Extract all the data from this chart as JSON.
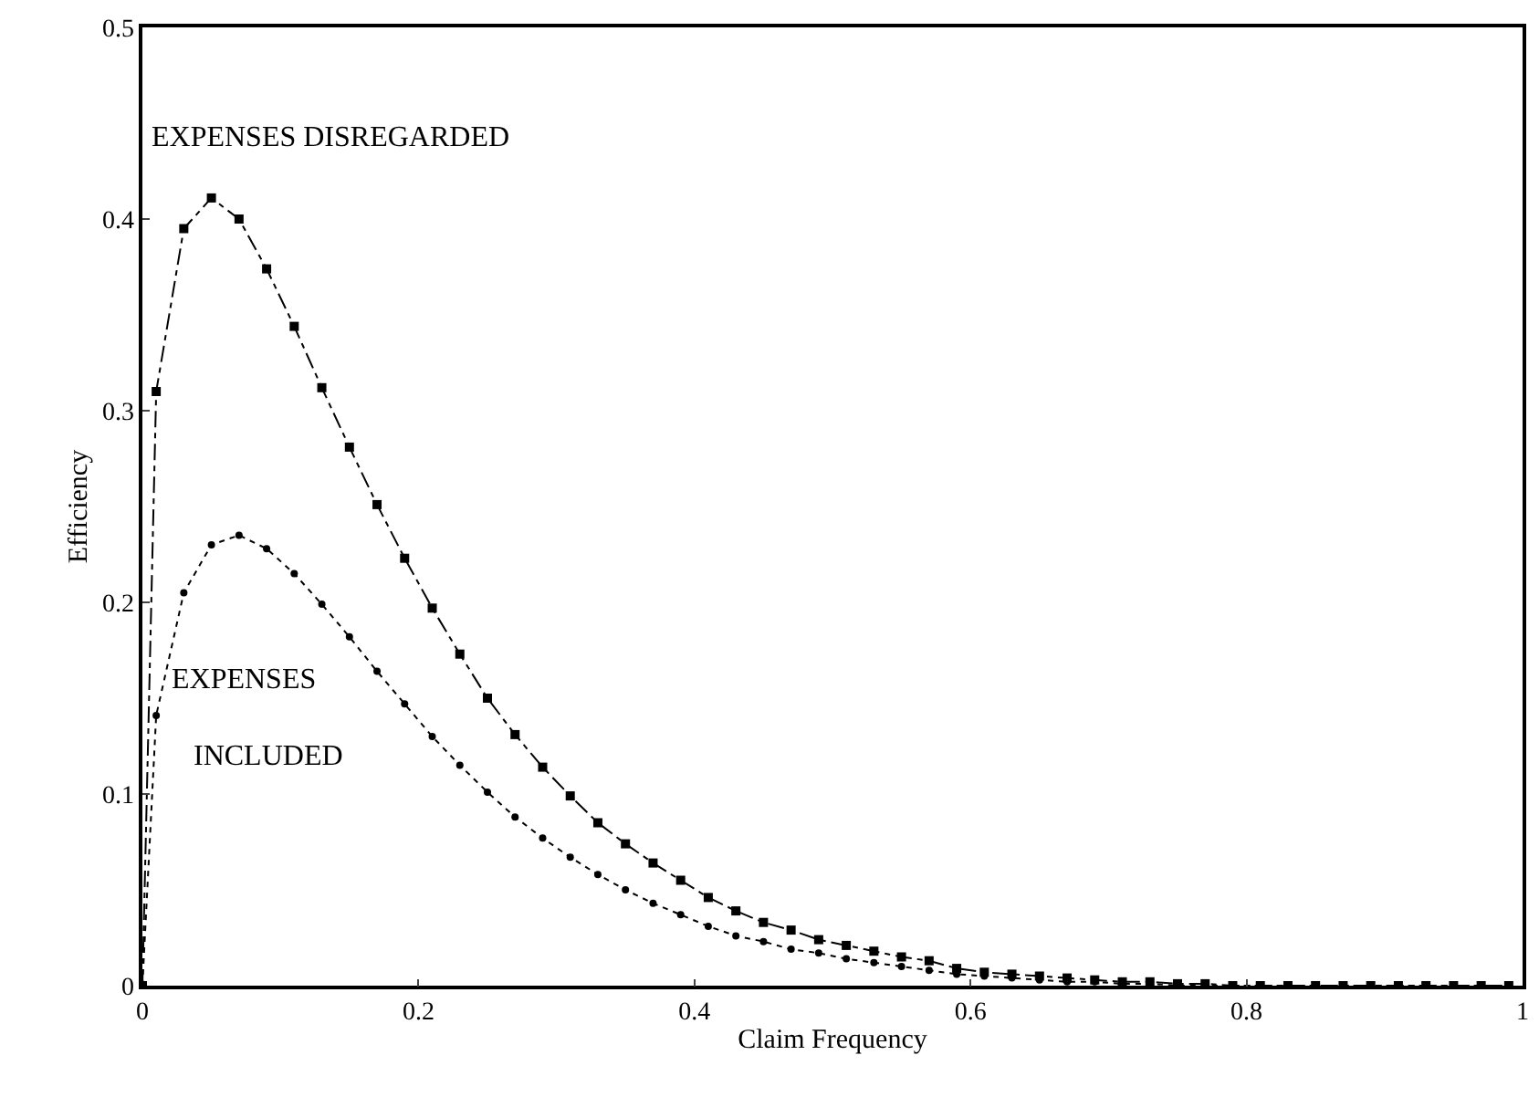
{
  "chart_data": {
    "type": "line",
    "xlabel": "Claim Frequency",
    "ylabel": "Efficiency",
    "x": [
      0,
      0.01,
      0.03,
      0.05,
      0.07,
      0.09,
      0.11,
      0.13,
      0.15,
      0.17,
      0.19,
      0.21,
      0.23,
      0.25,
      0.27,
      0.29,
      0.31,
      0.33,
      0.35,
      0.37,
      0.39,
      0.41,
      0.43,
      0.45,
      0.47,
      0.49,
      0.51,
      0.53,
      0.55,
      0.57,
      0.59,
      0.61,
      0.63,
      0.65,
      0.67,
      0.69,
      0.71,
      0.73,
      0.75,
      0.77,
      0.79,
      0.81,
      0.83,
      0.85,
      0.87,
      0.89,
      0.91,
      0.93,
      0.95,
      0.97,
      0.99
    ],
    "series": [
      {
        "color": "#000000",
        "marker": "square",
        "line_style": "dashed",
        "values": [
          0,
          0.31,
          0.395,
          0.411,
          0.4,
          0.374,
          0.344,
          0.312,
          0.281,
          0.251,
          0.223,
          0.197,
          0.173,
          0.15,
          0.131,
          0.114,
          0.099,
          0.085,
          0.074,
          0.064,
          0.055,
          0.046,
          0.039,
          0.033,
          0.029,
          0.024,
          0.021,
          0.018,
          0.015,
          0.013,
          0.009,
          0.007,
          0.006,
          0.005,
          0.004,
          0.003,
          0.002,
          0.002,
          0.001,
          0.001,
          0,
          0,
          0,
          0,
          0,
          0,
          0,
          0,
          0,
          0,
          0
        ]
      },
      {
        "color": "#000000",
        "marker": "circle",
        "line_style": "dotted",
        "values": [
          0,
          0.141,
          0.205,
          0.23,
          0.235,
          0.228,
          0.215,
          0.199,
          0.182,
          0.164,
          0.147,
          0.13,
          0.115,
          0.101,
          0.088,
          0.077,
          0.067,
          0.058,
          0.05,
          0.043,
          0.037,
          0.031,
          0.026,
          0.023,
          0.019,
          0.017,
          0.014,
          0.012,
          0.01,
          0.008,
          0.006,
          0.005,
          0.004,
          0.003,
          0.002,
          0.002,
          0.001,
          0.001,
          0,
          0,
          0,
          0,
          0,
          0,
          0,
          0,
          0,
          0,
          0,
          0,
          0
        ]
      }
    ],
    "xlim": [
      0,
      1
    ],
    "xticks": [
      0,
      0.2,
      0.4,
      0.6,
      0.8,
      1
    ],
    "ylim": [
      0,
      0.5
    ],
    "yticks": [
      0,
      0.1,
      0.2,
      0.3,
      0.4,
      0.5
    ],
    "annotations": [
      "EXPENSES DISREGARDED",
      "EXPENSES",
      "INCLUDED"
    ]
  }
}
